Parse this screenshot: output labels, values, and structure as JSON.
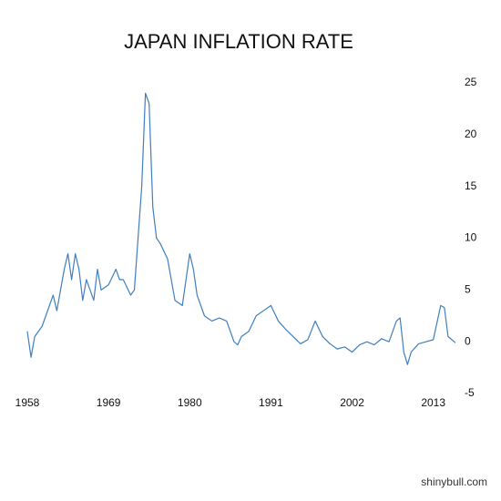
{
  "chart_data": {
    "type": "line",
    "title": "JAPAN INFLATION RATE",
    "color": "#3f7fbf",
    "x": [
      1958,
      1958.5,
      1959,
      1960,
      1961,
      1961.5,
      1962,
      1963,
      1963.5,
      1964,
      1964.5,
      1965,
      1965.5,
      1966,
      1967,
      1967.5,
      1968,
      1969,
      1970,
      1970.5,
      1971,
      1972,
      1972.5,
      1973,
      1973.5,
      1974,
      1974.5,
      1975,
      1975.5,
      1976,
      1977,
      1978,
      1979,
      1979.5,
      1980,
      1980.5,
      1981,
      1982,
      1983,
      1984,
      1985,
      1986,
      1986.5,
      1987,
      1988,
      1989,
      1990,
      1991,
      1992,
      1993,
      1994,
      1995,
      1996,
      1997,
      1998,
      1999,
      2000,
      2001,
      2002,
      2003,
      2004,
      2005,
      2006,
      2007,
      2008,
      2008.5,
      2009,
      2009.5,
      2010,
      2011,
      2012,
      2013,
      2014,
      2014.5,
      2015,
      2016
    ],
    "values": [
      1,
      -1.5,
      0.5,
      1.5,
      3.5,
      4.5,
      3,
      7,
      8.5,
      6,
      8.5,
      7,
      4,
      6,
      4,
      7,
      5,
      5.5,
      7,
      6,
      6,
      4.5,
      5,
      10,
      15,
      24,
      23,
      13,
      10,
      9.5,
      8,
      4,
      3.5,
      6,
      8.5,
      7,
      4.5,
      2.5,
      2,
      2.3,
      2,
      0,
      -0.3,
      0.5,
      1,
      2.5,
      3,
      3.5,
      2,
      1.2,
      0.5,
      -0.2,
      0.2,
      2,
      0.5,
      -0.2,
      -0.7,
      -0.5,
      -1,
      -0.3,
      0,
      -0.3,
      0.3,
      0,
      2,
      2.3,
      -1,
      -2.2,
      -1,
      -0.2,
      0,
      0.2,
      3.5,
      3.3,
      0.5,
      -0.1
    ],
    "xlim": [
      1958,
      2016
    ],
    "xticks": [
      1958,
      1969,
      1980,
      1991,
      2002,
      2013
    ],
    "ylim": [
      -5,
      25
    ],
    "yticks": [
      -5,
      0,
      5,
      10,
      15,
      20,
      25
    ],
    "watermark": "shinybull.com"
  }
}
